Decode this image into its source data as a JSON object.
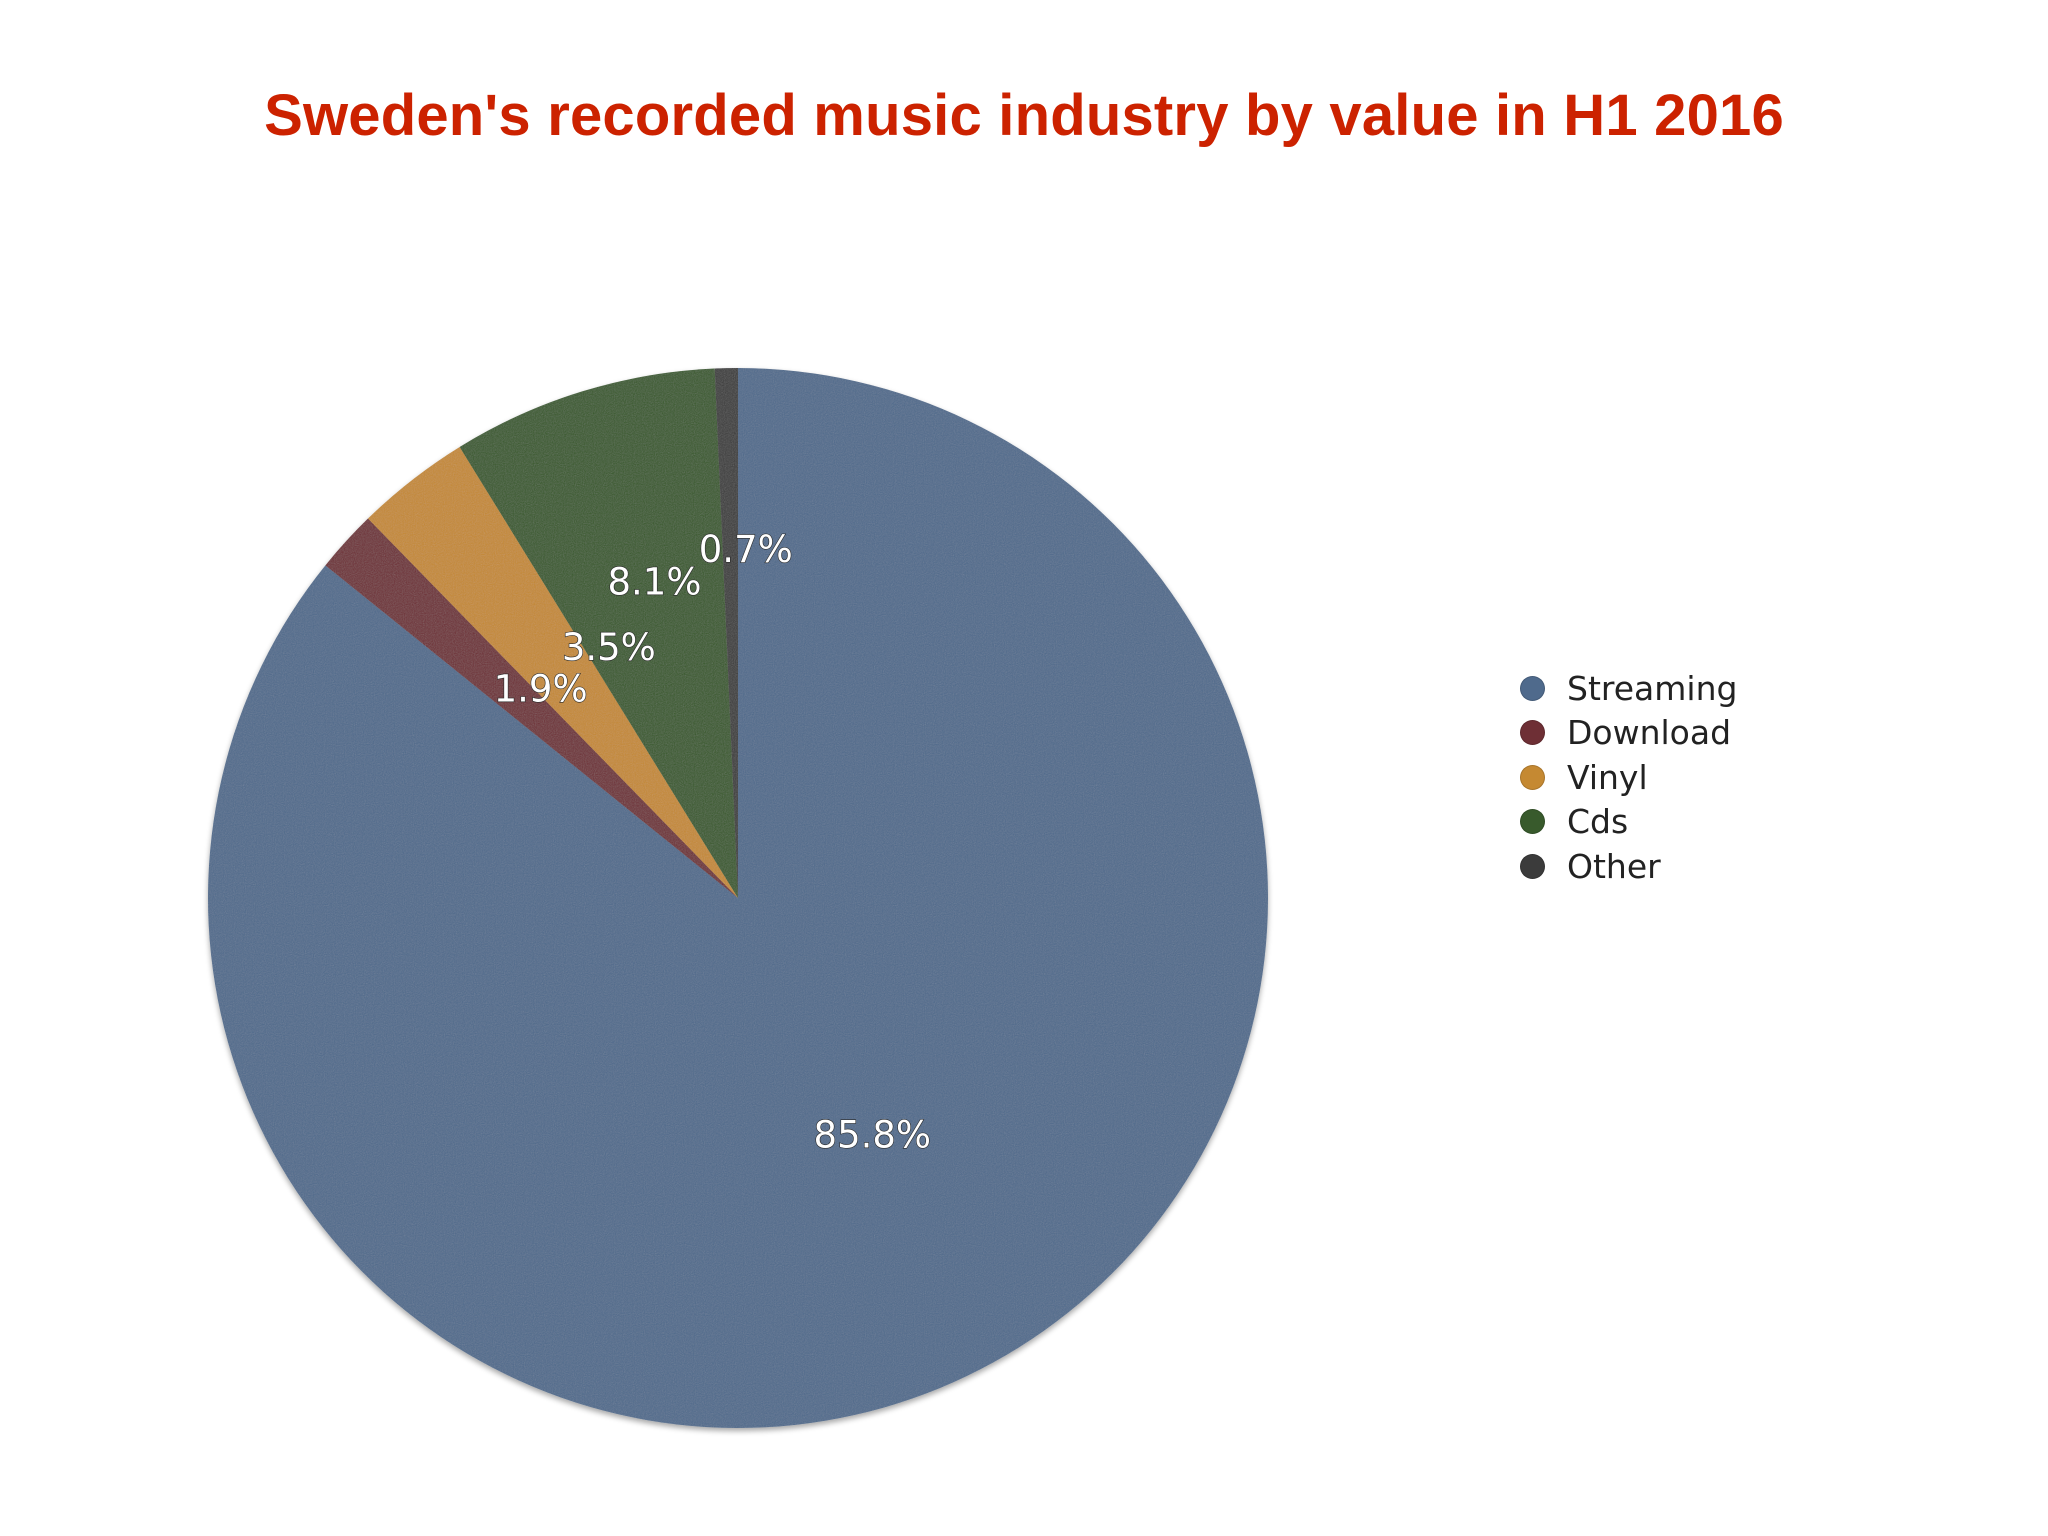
{
  "chart_data": {
    "type": "pie",
    "title": "Sweden's recorded music industry by value in H1 2016",
    "title_color": "#cc2200",
    "categories": [
      "Streaming",
      "Download",
      "Vinyl",
      "Cds",
      "Other"
    ],
    "values": [
      85.8,
      1.9,
      3.5,
      8.1,
      0.7
    ],
    "labels": [
      "85.8%",
      "1.9%",
      "3.5%",
      "8.1%",
      "0.7%"
    ],
    "colors": [
      "#4f6a8c",
      "#6e2f35",
      "#c58932",
      "#385a2c",
      "#3b3b3b"
    ],
    "legend_position": "right"
  }
}
